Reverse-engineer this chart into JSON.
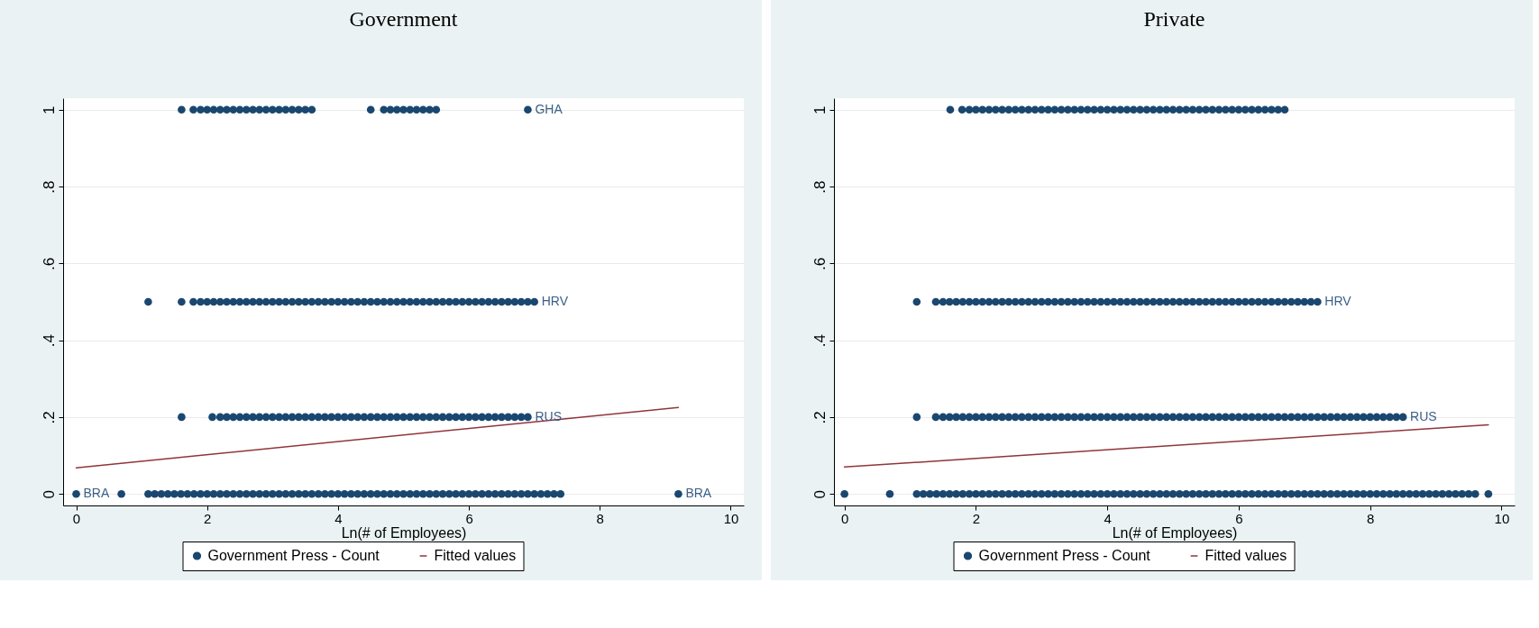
{
  "chart_data": [
    {
      "type": "scatter",
      "title": "Government",
      "xlabel": "Ln(# of Employees)",
      "xlim": [
        -0.2,
        10.2
      ],
      "xticks": [
        0,
        2,
        4,
        6,
        8,
        10
      ],
      "ylim": [
        -0.03,
        1.03
      ],
      "yticks": [
        {
          "value": 0,
          "label": "0"
        },
        {
          "value": 0.2,
          "label": ".2"
        },
        {
          "value": 0.4,
          "label": ".4"
        },
        {
          "value": 0.6,
          "label": ".6"
        },
        {
          "value": 0.8,
          "label": ".8"
        },
        {
          "value": 1,
          "label": "1"
        }
      ],
      "grid": "y",
      "legend": "bottom",
      "series": [
        {
          "name": "Government Press - Count",
          "type": "scatter",
          "marker": "circle",
          "color": "#1a476f",
          "x": [
            1.61,
            1.79,
            1.9,
            2.0,
            2.1,
            2.2,
            2.3,
            2.4,
            2.5,
            2.6,
            2.7,
            2.8,
            2.9,
            3.0,
            3.1,
            3.2,
            3.3,
            3.4,
            3.5,
            3.6,
            4.5,
            4.7,
            4.8,
            4.9,
            5.0,
            5.1,
            5.2,
            5.3,
            5.4,
            5.5,
            6.9,
            1.1,
            1.61,
            1.79,
            1.9,
            2.0,
            2.1,
            2.2,
            2.3,
            2.4,
            2.5,
            2.6,
            2.7,
            2.8,
            2.9,
            3.0,
            3.1,
            3.2,
            3.3,
            3.4,
            3.5,
            3.6,
            3.7,
            3.8,
            3.9,
            4.0,
            4.1,
            4.2,
            4.3,
            4.4,
            4.5,
            4.6,
            4.7,
            4.8,
            4.9,
            5.0,
            5.1,
            5.2,
            5.3,
            5.4,
            5.5,
            5.6,
            5.7,
            5.8,
            5.9,
            6.0,
            6.1,
            6.2,
            6.3,
            6.4,
            6.5,
            6.6,
            6.7,
            6.8,
            6.9,
            7.0,
            1.61,
            2.08,
            2.2,
            2.3,
            2.4,
            2.5,
            2.6,
            2.7,
            2.8,
            2.9,
            3.0,
            3.1,
            3.2,
            3.3,
            3.4,
            3.5,
            3.6,
            3.7,
            3.8,
            3.9,
            4.0,
            4.1,
            4.2,
            4.3,
            4.4,
            4.5,
            4.6,
            4.7,
            4.8,
            4.9,
            5.0,
            5.1,
            5.2,
            5.3,
            5.4,
            5.5,
            5.6,
            5.7,
            5.8,
            5.9,
            6.0,
            6.1,
            6.2,
            6.3,
            6.4,
            6.5,
            6.6,
            6.7,
            6.8,
            6.9,
            0,
            0.69,
            1.1,
            1.2,
            1.3,
            1.4,
            1.5,
            1.6,
            1.7,
            1.8,
            1.9,
            2.0,
            2.1,
            2.2,
            2.3,
            2.4,
            2.5,
            2.6,
            2.7,
            2.8,
            2.9,
            3.0,
            3.1,
            3.2,
            3.3,
            3.4,
            3.5,
            3.6,
            3.7,
            3.8,
            3.9,
            4.0,
            4.1,
            4.2,
            4.3,
            4.4,
            4.5,
            4.6,
            4.7,
            4.8,
            4.9,
            5.0,
            5.1,
            5.2,
            5.3,
            5.4,
            5.5,
            5.6,
            5.7,
            5.8,
            5.9,
            6.0,
            6.1,
            6.2,
            6.3,
            6.4,
            6.5,
            6.6,
            6.7,
            6.8,
            6.9,
            7.0,
            7.1,
            7.2,
            7.3,
            7.4,
            9.2
          ],
          "values": [
            1,
            1,
            1,
            1,
            1,
            1,
            1,
            1,
            1,
            1,
            1,
            1,
            1,
            1,
            1,
            1,
            1,
            1,
            1,
            1,
            1,
            1,
            1,
            1,
            1,
            1,
            1,
            1,
            1,
            1,
            1,
            0.5,
            0.5,
            0.5,
            0.5,
            0.5,
            0.5,
            0.5,
            0.5,
            0.5,
            0.5,
            0.5,
            0.5,
            0.5,
            0.5,
            0.5,
            0.5,
            0.5,
            0.5,
            0.5,
            0.5,
            0.5,
            0.5,
            0.5,
            0.5,
            0.5,
            0.5,
            0.5,
            0.5,
            0.5,
            0.5,
            0.5,
            0.5,
            0.5,
            0.5,
            0.5,
            0.5,
            0.5,
            0.5,
            0.5,
            0.5,
            0.5,
            0.5,
            0.5,
            0.5,
            0.5,
            0.5,
            0.5,
            0.5,
            0.5,
            0.5,
            0.5,
            0.5,
            0.5,
            0.5,
            0.5,
            0.2,
            0.2,
            0.2,
            0.2,
            0.2,
            0.2,
            0.2,
            0.2,
            0.2,
            0.2,
            0.2,
            0.2,
            0.2,
            0.2,
            0.2,
            0.2,
            0.2,
            0.2,
            0.2,
            0.2,
            0.2,
            0.2,
            0.2,
            0.2,
            0.2,
            0.2,
            0.2,
            0.2,
            0.2,
            0.2,
            0.2,
            0.2,
            0.2,
            0.2,
            0.2,
            0.2,
            0.2,
            0.2,
            0.2,
            0.2,
            0.2,
            0.2,
            0.2,
            0.2,
            0.2,
            0.2,
            0.2,
            0.2,
            0.2,
            0.2,
            0,
            0,
            0,
            0,
            0,
            0,
            0,
            0,
            0,
            0,
            0,
            0,
            0,
            0,
            0,
            0,
            0,
            0,
            0,
            0,
            0,
            0,
            0,
            0,
            0,
            0,
            0,
            0,
            0,
            0,
            0,
            0,
            0,
            0,
            0,
            0,
            0,
            0,
            0,
            0,
            0,
            0,
            0,
            0,
            0,
            0,
            0,
            0,
            0,
            0,
            0,
            0,
            0,
            0,
            0,
            0,
            0,
            0,
            0,
            0,
            0,
            0,
            0,
            0,
            0,
            0,
            0
          ]
        },
        {
          "name": "Fitted values",
          "type": "line",
          "marker": "none",
          "color": "#90353b",
          "x": [
            0,
            9.2
          ],
          "values": [
            0.068,
            0.225
          ]
        }
      ],
      "annotations": [
        {
          "text": "BRA",
          "x": 0,
          "y": 0
        },
        {
          "text": "BRA",
          "x": 9.2,
          "y": 0
        },
        {
          "text": "GHA",
          "x": 6.9,
          "y": 1
        },
        {
          "text": "HRV",
          "x": 7.0,
          "y": 0.5
        },
        {
          "text": "RUS",
          "x": 6.9,
          "y": 0.2
        }
      ]
    },
    {
      "type": "scatter",
      "title": "Private",
      "xlabel": "Ln(# of Employees)",
      "xlim": [
        -0.16,
        10.2
      ],
      "xticks": [
        0,
        2,
        4,
        6,
        8,
        10
      ],
      "ylim": [
        -0.03,
        1.03
      ],
      "yticks": [
        {
          "value": 0,
          "label": "0"
        },
        {
          "value": 0.2,
          "label": ".2"
        },
        {
          "value": 0.4,
          "label": ".4"
        },
        {
          "value": 0.6,
          "label": ".6"
        },
        {
          "value": 0.8,
          "label": ".8"
        },
        {
          "value": 1,
          "label": "1"
        }
      ],
      "grid": "y",
      "legend": "bottom",
      "series": [
        {
          "name": "Government Press - Count",
          "type": "scatter",
          "marker": "circle",
          "color": "#1a476f",
          "x": [
            1.61,
            1.79,
            1.9,
            2.0,
            2.1,
            2.2,
            2.3,
            2.4,
            2.5,
            2.6,
            2.7,
            2.8,
            2.9,
            3.0,
            3.1,
            3.2,
            3.3,
            3.4,
            3.5,
            3.6,
            3.7,
            3.8,
            3.9,
            4.0,
            4.1,
            4.2,
            4.3,
            4.4,
            4.5,
            4.6,
            4.7,
            4.8,
            4.9,
            5.0,
            5.1,
            5.2,
            5.3,
            5.4,
            5.5,
            5.6,
            5.7,
            5.8,
            5.9,
            6.0,
            6.1,
            6.2,
            6.3,
            6.4,
            6.5,
            6.6,
            6.7,
            1.1,
            1.39,
            1.5,
            1.6,
            1.7,
            1.8,
            1.9,
            2.0,
            2.1,
            2.2,
            2.3,
            2.4,
            2.5,
            2.6,
            2.7,
            2.8,
            2.9,
            3.0,
            3.1,
            3.2,
            3.3,
            3.4,
            3.5,
            3.6,
            3.7,
            3.8,
            3.9,
            4.0,
            4.1,
            4.2,
            4.3,
            4.4,
            4.5,
            4.6,
            4.7,
            4.8,
            4.9,
            5.0,
            5.1,
            5.2,
            5.3,
            5.4,
            5.5,
            5.6,
            5.7,
            5.8,
            5.9,
            6.0,
            6.1,
            6.2,
            6.3,
            6.4,
            6.5,
            6.6,
            6.7,
            6.8,
            6.9,
            7.0,
            7.1,
            7.2,
            1.1,
            1.39,
            1.5,
            1.6,
            1.7,
            1.8,
            1.9,
            2.0,
            2.1,
            2.2,
            2.3,
            2.4,
            2.5,
            2.6,
            2.7,
            2.8,
            2.9,
            3.0,
            3.1,
            3.2,
            3.3,
            3.4,
            3.5,
            3.6,
            3.7,
            3.8,
            3.9,
            4.0,
            4.1,
            4.2,
            4.3,
            4.4,
            4.5,
            4.6,
            4.7,
            4.8,
            4.9,
            5.0,
            5.1,
            5.2,
            5.3,
            5.4,
            5.5,
            5.6,
            5.7,
            5.8,
            5.9,
            6.0,
            6.1,
            6.2,
            6.3,
            6.4,
            6.5,
            6.6,
            6.7,
            6.8,
            6.9,
            7.0,
            7.1,
            7.2,
            7.3,
            7.4,
            7.5,
            7.6,
            7.7,
            7.8,
            7.9,
            8.0,
            8.1,
            8.2,
            8.3,
            8.4,
            8.5,
            0,
            0.69,
            1.1,
            1.2,
            1.3,
            1.4,
            1.5,
            1.6,
            1.7,
            1.8,
            1.9,
            2.0,
            2.1,
            2.2,
            2.3,
            2.4,
            2.5,
            2.6,
            2.7,
            2.8,
            2.9,
            3.0,
            3.1,
            3.2,
            3.3,
            3.4,
            3.5,
            3.6,
            3.7,
            3.8,
            3.9,
            4.0,
            4.1,
            4.2,
            4.3,
            4.4,
            4.5,
            4.6,
            4.7,
            4.8,
            4.9,
            5.0,
            5.1,
            5.2,
            5.3,
            5.4,
            5.5,
            5.6,
            5.7,
            5.8,
            5.9,
            6.0,
            6.1,
            6.2,
            6.3,
            6.4,
            6.5,
            6.6,
            6.7,
            6.8,
            6.9,
            7.0,
            7.1,
            7.2,
            7.3,
            7.4,
            7.5,
            7.6,
            7.7,
            7.8,
            7.9,
            8.0,
            8.1,
            8.2,
            8.3,
            8.4,
            8.5,
            8.6,
            8.7,
            8.8,
            8.9,
            9.0,
            9.1,
            9.2,
            9.3,
            9.4,
            9.5,
            9.6,
            9.8
          ],
          "values": [
            1,
            1,
            1,
            1,
            1,
            1,
            1,
            1,
            1,
            1,
            1,
            1,
            1,
            1,
            1,
            1,
            1,
            1,
            1,
            1,
            1,
            1,
            1,
            1,
            1,
            1,
            1,
            1,
            1,
            1,
            1,
            1,
            1,
            1,
            1,
            1,
            1,
            1,
            1,
            1,
            1,
            1,
            1,
            1,
            1,
            1,
            1,
            1,
            1,
            1,
            1,
            0.5,
            0.5,
            0.5,
            0.5,
            0.5,
            0.5,
            0.5,
            0.5,
            0.5,
            0.5,
            0.5,
            0.5,
            0.5,
            0.5,
            0.5,
            0.5,
            0.5,
            0.5,
            0.5,
            0.5,
            0.5,
            0.5,
            0.5,
            0.5,
            0.5,
            0.5,
            0.5,
            0.5,
            0.5,
            0.5,
            0.5,
            0.5,
            0.5,
            0.5,
            0.5,
            0.5,
            0.5,
            0.5,
            0.5,
            0.5,
            0.5,
            0.5,
            0.5,
            0.5,
            0.5,
            0.5,
            0.5,
            0.5,
            0.5,
            0.5,
            0.5,
            0.5,
            0.5,
            0.5,
            0.5,
            0.5,
            0.5,
            0.5,
            0.5,
            0.5,
            0.2,
            0.2,
            0.2,
            0.2,
            0.2,
            0.2,
            0.2,
            0.2,
            0.2,
            0.2,
            0.2,
            0.2,
            0.2,
            0.2,
            0.2,
            0.2,
            0.2,
            0.2,
            0.2,
            0.2,
            0.2,
            0.2,
            0.2,
            0.2,
            0.2,
            0.2,
            0.2,
            0.2,
            0.2,
            0.2,
            0.2,
            0.2,
            0.2,
            0.2,
            0.2,
            0.2,
            0.2,
            0.2,
            0.2,
            0.2,
            0.2,
            0.2,
            0.2,
            0.2,
            0.2,
            0.2,
            0.2,
            0.2,
            0.2,
            0.2,
            0.2,
            0.2,
            0.2,
            0.2,
            0.2,
            0.2,
            0.2,
            0.2,
            0.2,
            0.2,
            0.2,
            0.2,
            0.2,
            0.2,
            0.2,
            0.2,
            0.2,
            0.2,
            0.2,
            0.2,
            0.2,
            0.2,
            0.2,
            0,
            0,
            0,
            0,
            0,
            0,
            0,
            0,
            0,
            0,
            0,
            0,
            0,
            0,
            0,
            0,
            0,
            0,
            0,
            0,
            0,
            0,
            0,
            0,
            0,
            0,
            0,
            0,
            0,
            0,
            0,
            0,
            0,
            0,
            0,
            0,
            0,
            0,
            0,
            0,
            0,
            0,
            0,
            0,
            0,
            0,
            0,
            0,
            0,
            0,
            0,
            0,
            0,
            0,
            0,
            0,
            0,
            0,
            0,
            0,
            0,
            0,
            0,
            0,
            0,
            0,
            0,
            0,
            0,
            0,
            0,
            0,
            0,
            0,
            0,
            0,
            0,
            0,
            0,
            0,
            0,
            0,
            0,
            0,
            0,
            0,
            0,
            0,
            0
          ]
        },
        {
          "name": "Fitted values",
          "type": "line",
          "marker": "none",
          "color": "#90353b",
          "x": [
            0,
            9.8
          ],
          "values": [
            0.07,
            0.18
          ]
        }
      ],
      "annotations": [
        {
          "text": "HRV",
          "x": 7.2,
          "y": 0.5
        },
        {
          "text": "RUS",
          "x": 8.5,
          "y": 0.2
        }
      ]
    }
  ]
}
